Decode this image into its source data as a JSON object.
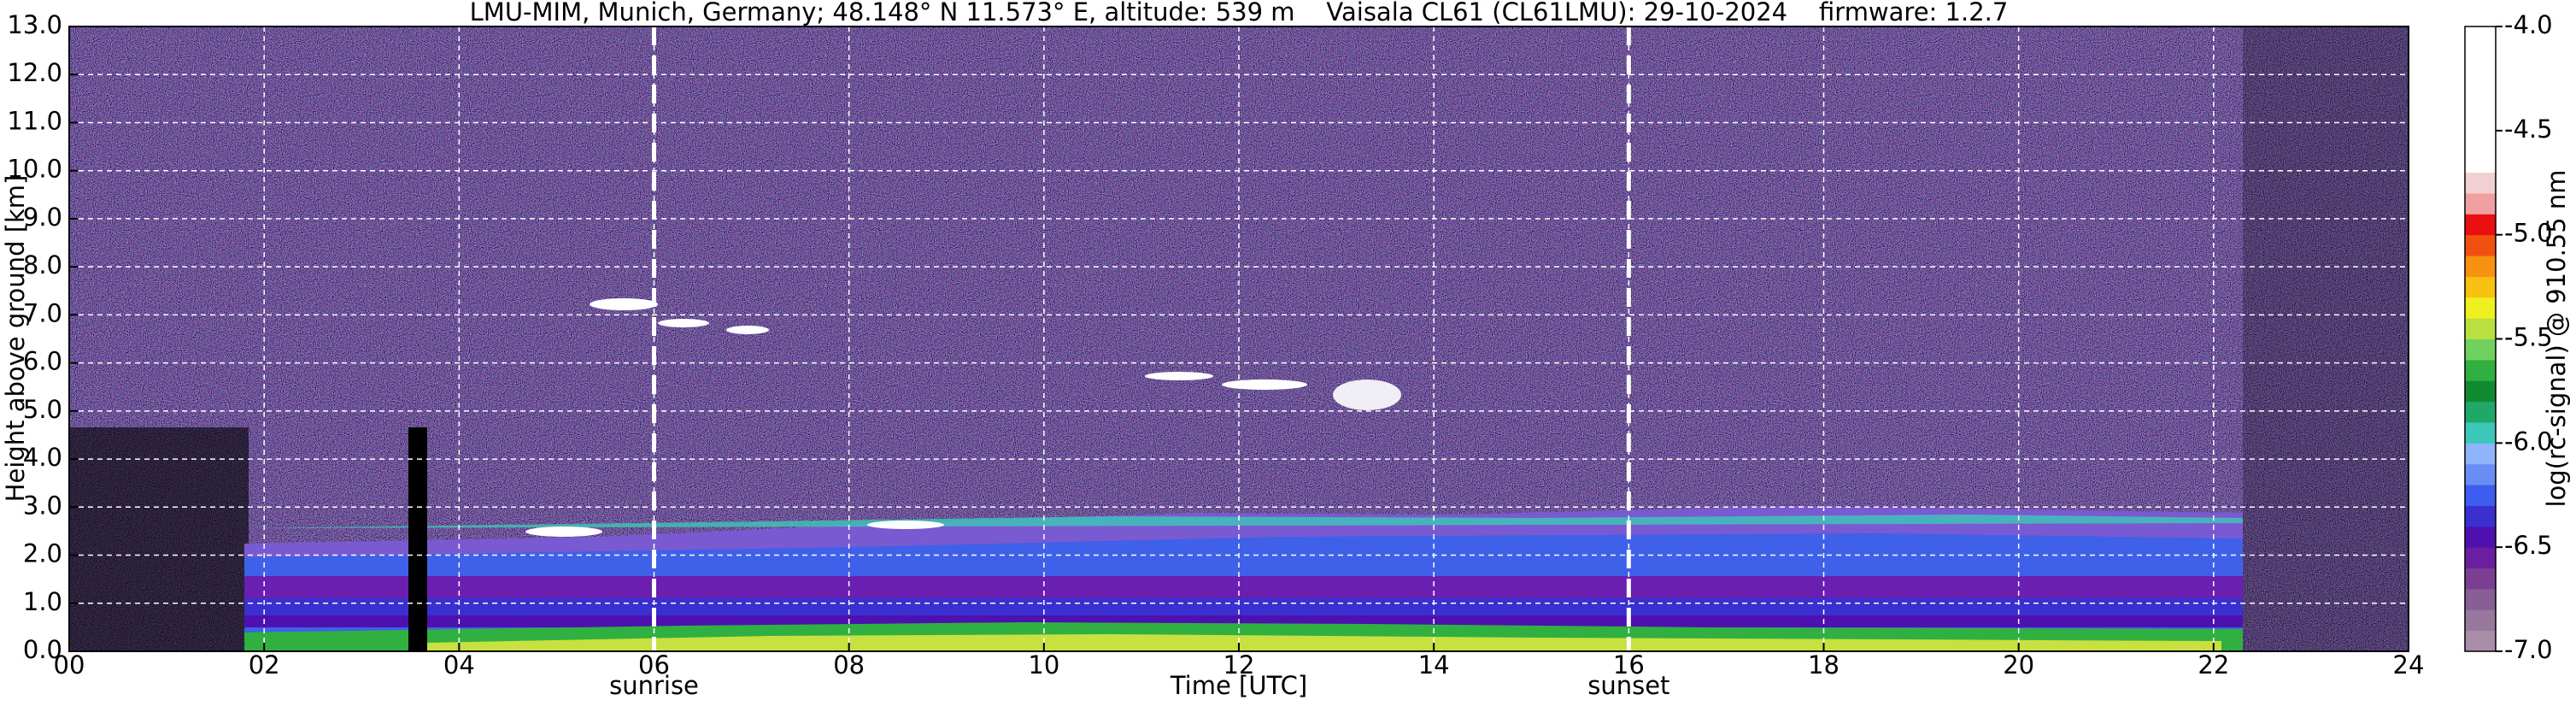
{
  "chart_data": {
    "type": "heatmap",
    "title": "LMU-MIM, Munich, Germany; 48.148° N 11.573° E, altitude: 539 m    Vaisala CL61 (CL61LMU): 29-10-2024    firmware: 1.2.7",
    "xlabel": "Time [UTC]",
    "ylabel": "Height above ground [km]",
    "xlim": [
      0,
      24
    ],
    "ylim": [
      0,
      13
    ],
    "xticks": [
      {
        "value": 0,
        "label": "00"
      },
      {
        "value": 2,
        "label": "02"
      },
      {
        "value": 4,
        "label": "04"
      },
      {
        "value": 6,
        "label": "06"
      },
      {
        "value": 8,
        "label": "08"
      },
      10,
      12,
      14,
      16,
      18,
      20,
      22,
      24
    ],
    "yticks": [
      {
        "value": 0,
        "label": "0.0"
      },
      {
        "value": 1,
        "label": "1.0"
      },
      {
        "value": 2,
        "label": "2.0"
      },
      {
        "value": 3,
        "label": "3.0"
      },
      {
        "value": 4,
        "label": "4.0"
      },
      {
        "value": 5,
        "label": "5.0"
      },
      {
        "value": 6,
        "label": "6.0"
      },
      {
        "value": 7,
        "label": "7.0"
      },
      {
        "value": 8,
        "label": "8.0"
      },
      {
        "value": 9,
        "label": "9.0"
      },
      {
        "value": 10,
        "label": "10.0"
      },
      {
        "value": 11,
        "label": "11.0"
      },
      {
        "value": 12,
        "label": "12.0"
      },
      {
        "value": 13,
        "label": "13.0"
      }
    ],
    "grid": true,
    "annotations": [
      {
        "x": 6,
        "label": "sunrise"
      },
      {
        "x": 16,
        "label": "sunset"
      }
    ],
    "colorbar": {
      "label": "log(rc-signal) @ 910.55 nm",
      "lim": [
        -7,
        -4
      ],
      "ticks": [
        {
          "value": -4,
          "label": "-4.0"
        },
        -4.5,
        {
          "value": -5,
          "label": "-5.0"
        },
        -5.5,
        {
          "value": -6,
          "label": "-6.0"
        },
        -6.5,
        {
          "value": -7,
          "label": "-7.0"
        }
      ],
      "colors": [
        "#a88ea8",
        "#98789c",
        "#885f94",
        "#7a3f92",
        "#6a1f9e",
        "#4f10b0",
        "#3a30d0",
        "#3d5cf0",
        "#6a8cf5",
        "#8fb4fa",
        "#3cc8b8",
        "#20a868",
        "#108a30",
        "#30b040",
        "#70d060",
        "#b8e040",
        "#f0f020",
        "#f8c010",
        "#f89010",
        "#f05010",
        "#e81010",
        "#f0a0a0",
        "#f0d0d0",
        "#ffffff",
        "#ffffff",
        "#ffffff",
        "#ffffff",
        "#ffffff",
        "#ffffff",
        "#ffffff"
      ]
    }
  }
}
